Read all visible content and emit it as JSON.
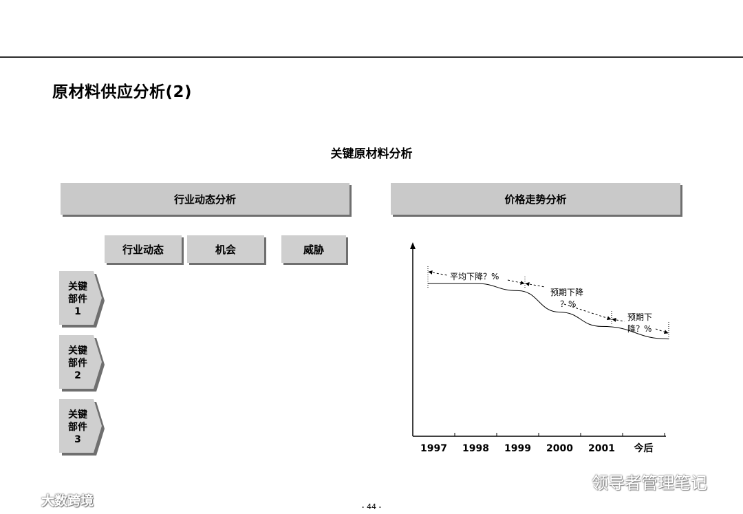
{
  "page": {
    "title": "原材料供应分析(2)",
    "section_title": "关键原材料分析",
    "page_number": "- 44 -"
  },
  "left_panel": {
    "header": "行业动态分析",
    "columns": [
      "行业动态",
      "机会",
      "威胁"
    ],
    "rows": [
      {
        "line1": "关键",
        "line2": "部件",
        "line3": "1"
      },
      {
        "line1": "关键",
        "line2": "部件",
        "line3": "2"
      },
      {
        "line1": "关键",
        "line2": "部件",
        "line3": "3"
      }
    ]
  },
  "right_panel": {
    "header": "价格走势分析"
  },
  "chart_data": {
    "type": "line",
    "x": [
      "1997",
      "1998",
      "1999",
      "2000",
      "2001",
      "今后"
    ],
    "series": [
      {
        "values": [
          100,
          100,
          96,
          84,
          76,
          69
        ]
      }
    ],
    "annotations": [
      {
        "text": "平均下降？%"
      },
      {
        "line1": "预期下降",
        "line2": "？%"
      },
      {
        "line1": "预期下",
        "line2": "降？%"
      }
    ],
    "grid": false,
    "xlabel": "",
    "ylabel": ""
  },
  "watermarks": {
    "left": "大数跨境",
    "right": "领导者管理笔记"
  },
  "colors": {
    "header_bar": "#c9c9c9",
    "shadow": "#6f6f6f"
  }
}
